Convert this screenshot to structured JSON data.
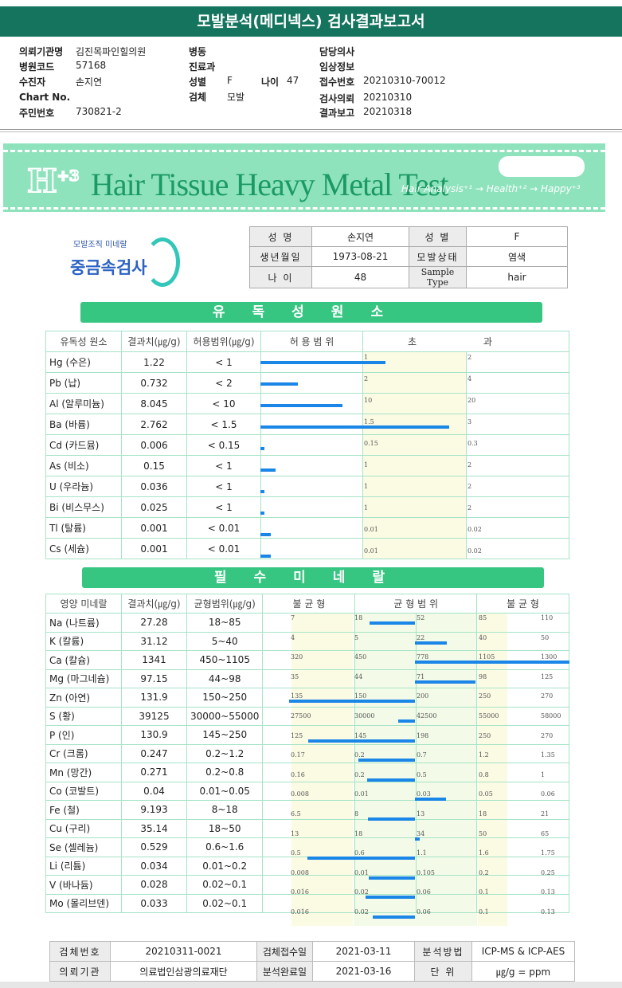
{
  "title": "모발분석(메디넥스) 검사결과보고서",
  "info": {
    "requester_label": "의뢰기관명",
    "requester": "김진목파인힐의원",
    "hospcode_label": "병원코드",
    "hospcode": "57168",
    "patient_label": "수진자",
    "patient": "손지연",
    "chart_label": "Chart No.",
    "chart": "",
    "ssn_label": "주민번호",
    "ssn": "730821-2",
    "ward_label": "병동",
    "dept_label": "진료과",
    "sex_label": "성별",
    "sex": "F",
    "age_label": "나이",
    "age": "47",
    "specimen_label": "검체",
    "specimen": "모발",
    "doctor_label": "담당의사",
    "clinical_label": "임상정보",
    "receipt_label": "접수번호",
    "receipt": "20210310-70012",
    "request_label": "검사의뢰",
    "request": "20210310",
    "report_label": "결과보고",
    "report": "20210318"
  },
  "banner": {
    "logo": "H",
    "logo_sup": "+3",
    "title": "Hair Tissue Heavy Metal Test",
    "sub": "Hair Analysis⁺¹ → Health⁺² → Happy⁺³"
  },
  "logo": {
    "small": "모발조직 미네랄",
    "big": "중금속검사"
  },
  "patient_table": {
    "name_label": "성 명",
    "name": "손지연",
    "sex_label": "성 별",
    "sex": "F",
    "birth_label": "생년월일",
    "birth": "1973-08-21",
    "hair_label": "모발상태",
    "hair": "염색",
    "age_label": "나 이",
    "age": "48",
    "sample_label": "Sample Type",
    "sample": "hair"
  },
  "toxic": {
    "heading": "유독성원소",
    "headers": [
      "유독성 원소",
      "결과치(㎍/g)",
      "허용범위(㎍/g)",
      "허 용 범 위",
      "초 과"
    ],
    "rows": [
      {
        "name": "Hg (수은)",
        "value": "1.22",
        "range": "< 1",
        "t1": "1",
        "t2": "2",
        "v": 1.22,
        "max": 1
      },
      {
        "name": "Pb (납)",
        "value": "0.732",
        "range": "< 2",
        "t1": "2",
        "t2": "4",
        "v": 0.732,
        "max": 2
      },
      {
        "name": "Al (알루미늄)",
        "value": "8.045",
        "range": "< 10",
        "t1": "10",
        "t2": "20",
        "v": 8.045,
        "max": 10
      },
      {
        "name": "Ba (바륨)",
        "value": "2.762",
        "range": "< 1.5",
        "t1": "1.5",
        "t2": "3",
        "v": 2.762,
        "max": 1.5
      },
      {
        "name": "Cd (카드뮴)",
        "value": "0.006",
        "range": "< 0.15",
        "t1": "0.15",
        "t2": "0.3",
        "v": 0.006,
        "max": 0.15
      },
      {
        "name": "As (비소)",
        "value": "0.15",
        "range": "< 1",
        "t1": "1",
        "t2": "2",
        "v": 0.15,
        "max": 1
      },
      {
        "name": "U (우라늄)",
        "value": "0.036",
        "range": "< 1",
        "t1": "1",
        "t2": "2",
        "v": 0.036,
        "max": 1
      },
      {
        "name": "Bi (비스무스)",
        "value": "0.025",
        "range": "< 1",
        "t1": "1",
        "t2": "2",
        "v": 0.025,
        "max": 1
      },
      {
        "name": "Tl (탈륨)",
        "value": "0.001",
        "range": "< 0.01",
        "t1": "0.01",
        "t2": "0.02",
        "v": 0.001,
        "max": 0.01
      },
      {
        "name": "Cs (세슘)",
        "value": "0.001",
        "range": "< 0.01",
        "t1": "0.01",
        "t2": "0.02",
        "v": 0.001,
        "max": 0.01
      }
    ]
  },
  "minerals": {
    "heading": "필수미네랄",
    "headers": [
      "영양 미네랄",
      "결과치(㎍/g)",
      "균형범위(㎍/g)",
      "불 균 형",
      "균 형 범 위",
      "불 균 형"
    ],
    "rows": [
      {
        "name": "Na (나트륨)",
        "value": "27.28",
        "range": "18~85",
        "ticks": [
          "7",
          "18",
          "52",
          "85",
          "110"
        ],
        "v": 27.28
      },
      {
        "name": "K (칼륨)",
        "value": "31.12",
        "range": "5~40",
        "ticks": [
          "4",
          "5",
          "22",
          "40",
          "50"
        ],
        "v": 31.12
      },
      {
        "name": "Ca (칼슘)",
        "value": "1341",
        "range": "450~1105",
        "ticks": [
          "320",
          "450",
          "778",
          "1105",
          "1300"
        ],
        "v": 1341
      },
      {
        "name": "Mg (마그네슘)",
        "value": "97.15",
        "range": "44~98",
        "ticks": [
          "35",
          "44",
          "71",
          "98",
          "125"
        ],
        "v": 97.15
      },
      {
        "name": "Zn (아연)",
        "value": "131.9",
        "range": "150~250",
        "ticks": [
          "135",
          "150",
          "200",
          "250",
          "270"
        ],
        "v": 131.9
      },
      {
        "name": "S (황)",
        "value": "39125",
        "range": "30000~55000",
        "ticks": [
          "27500",
          "30000",
          "42500",
          "55000",
          "58000"
        ],
        "v": 39125
      },
      {
        "name": "P (인)",
        "value": "130.9",
        "range": "145~250",
        "ticks": [
          "125",
          "145",
          "198",
          "250",
          "270"
        ],
        "v": 130.9
      },
      {
        "name": "Cr (크롬)",
        "value": "0.247",
        "range": "0.2~1.2",
        "ticks": [
          "0.17",
          "0.2",
          "0.7",
          "1.2",
          "1.35"
        ],
        "v": 0.247
      },
      {
        "name": "Mn (망간)",
        "value": "0.271",
        "range": "0.2~0.8",
        "ticks": [
          "0.16",
          "0.2",
          "0.5",
          "0.8",
          "1"
        ],
        "v": 0.271
      },
      {
        "name": "Co (코발트)",
        "value": "0.04",
        "range": "0.01~0.05",
        "ticks": [
          "0.008",
          "0.01",
          "0.03",
          "0.05",
          "0.06"
        ],
        "v": 0.04
      },
      {
        "name": "Fe (철)",
        "value": "9.193",
        "range": "8~18",
        "ticks": [
          "6.5",
          "8",
          "13",
          "18",
          "21"
        ],
        "v": 9.193
      },
      {
        "name": "Cu (구리)",
        "value": "35.14",
        "range": "18~50",
        "ticks": [
          "13",
          "18",
          "34",
          "50",
          "65"
        ],
        "v": 35.14
      },
      {
        "name": "Se (셀레늄)",
        "value": "0.529",
        "range": "0.6~1.6",
        "ticks": [
          "0.5",
          "0.6",
          "1.1",
          "1.6",
          "1.75"
        ],
        "v": 0.529
      },
      {
        "name": "Li (리튬)",
        "value": "0.034",
        "range": "0.01~0.2",
        "ticks": [
          "0.008",
          "0.01",
          "0.105",
          "0.2",
          "0.25"
        ],
        "v": 0.034
      },
      {
        "name": "V (바나듐)",
        "value": "0.028",
        "range": "0.02~0.1",
        "ticks": [
          "0.016",
          "0.02",
          "0.06",
          "0.1",
          "0.13"
        ],
        "v": 0.028
      },
      {
        "name": "Mo (몰리브덴)",
        "value": "0.033",
        "range": "0.02~0.1",
        "ticks": [
          "0.016",
          "0.02",
          "0.06",
          "0.1",
          "0.13"
        ],
        "v": 0.033
      }
    ]
  },
  "footer": {
    "specimen_no_label": "검체번호",
    "specimen_no": "20210311-0021",
    "received_label": "검체접수일",
    "received": "2021-03-11",
    "method_label": "분석방법",
    "method": "ICP-MS & ICP-AES",
    "org_label": "의뢰기관",
    "org": "의료법인삼광의료재단",
    "done_label": "분석완료일",
    "done": "2021-03-16",
    "unit_label": "단 위",
    "unit": "㎍/g = ppm"
  }
}
